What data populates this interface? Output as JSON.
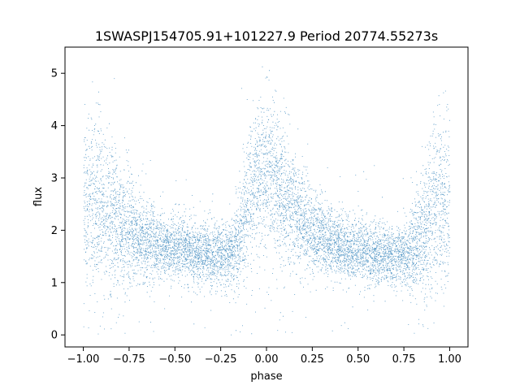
{
  "chart_data": {
    "type": "scatter",
    "title": "1SWASPJ154705.91+101227.9 Period 20774.55273s",
    "xlabel": "phase",
    "ylabel": "flux",
    "xlim": [
      -1.1,
      1.1
    ],
    "ylim": [
      -0.23,
      5.5
    ],
    "x_ticks": [
      -1.0,
      -0.75,
      -0.5,
      -0.25,
      0.0,
      0.25,
      0.5,
      0.75,
      1.0
    ],
    "x_tick_labels": [
      "−1.00",
      "−0.75",
      "−0.50",
      "−0.25",
      "0.00",
      "0.25",
      "0.50",
      "0.75",
      "1.00"
    ],
    "y_ticks": [
      0,
      1,
      2,
      3,
      4,
      5
    ],
    "y_tick_labels": [
      "0",
      "1",
      "2",
      "3",
      "4",
      "5"
    ],
    "marker_color": "#1f77b4",
    "grid": false,
    "legend": "none",
    "profile": {
      "phase": [
        -1.0,
        -0.95,
        -0.9,
        -0.85,
        -0.8,
        -0.75,
        -0.7,
        -0.6,
        -0.5,
        -0.4,
        -0.3,
        -0.2,
        -0.15,
        -0.1,
        -0.05,
        0.0,
        0.05,
        0.1,
        0.15,
        0.2,
        0.25,
        0.3,
        0.35,
        0.4,
        0.5,
        0.6,
        0.7,
        0.75,
        0.8,
        0.85,
        0.9,
        0.95,
        1.0
      ],
      "median_flux": [
        2.35,
        2.6,
        2.5,
        2.25,
        2.05,
        1.95,
        1.85,
        1.72,
        1.65,
        1.6,
        1.55,
        1.55,
        1.8,
        2.6,
        3.1,
        3.15,
        2.9,
        2.6,
        2.35,
        2.15,
        2.0,
        1.85,
        1.75,
        1.7,
        1.6,
        1.55,
        1.52,
        1.52,
        1.6,
        1.9,
        2.4,
        2.6,
        2.5
      ],
      "spread": [
        0.8,
        0.85,
        0.8,
        0.7,
        0.6,
        0.5,
        0.4,
        0.33,
        0.3,
        0.28,
        0.28,
        0.3,
        0.5,
        0.7,
        0.7,
        0.7,
        0.65,
        0.6,
        0.5,
        0.45,
        0.4,
        0.35,
        0.32,
        0.3,
        0.28,
        0.27,
        0.27,
        0.28,
        0.4,
        0.6,
        0.8,
        0.85,
        0.8
      ]
    }
  }
}
